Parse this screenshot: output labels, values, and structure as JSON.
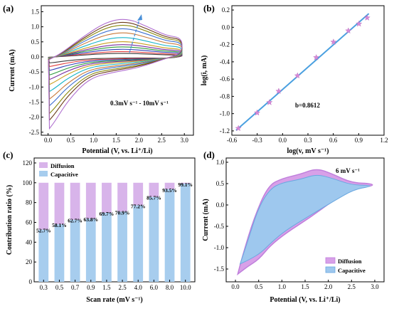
{
  "panels": {
    "a": {
      "label": "(a)",
      "annotation": "0.3mV s⁻¹ - 10mV s⁻¹"
    },
    "b": {
      "label": "(b)",
      "annotation": "b=0.8612"
    },
    "c": {
      "label": "(c)"
    },
    "d": {
      "label": "(d)",
      "annotation": "6 mV s⁻¹"
    }
  },
  "chart_data": [
    {
      "id": "a",
      "type": "line",
      "xlabel": "Potential (V, vs. Li⁺/Li)",
      "ylabel": "Current (mA)",
      "xlim": [
        -0.15,
        3.2
      ],
      "ylim": [
        -2.6,
        1.7
      ],
      "xticks": [
        0.0,
        0.5,
        1.0,
        1.5,
        2.0,
        2.5,
        3.0
      ],
      "yticks": [
        -2.5,
        -2.0,
        -1.5,
        -1.0,
        -0.5,
        0.0,
        0.5,
        1.0,
        1.5
      ],
      "xtick_labels": [
        "0.0",
        "0.5",
        "1.0",
        "1.5",
        "2.0",
        "2.5",
        "3.0"
      ],
      "ytick_labels": [
        "-2.5",
        "-2.0",
        "-1.5",
        "-1.0",
        "-0.5",
        "0.0",
        "0.5",
        "1.0",
        "1.5"
      ],
      "grid": false,
      "series": [
        {
          "color": "#3b3b3b",
          "anodic_peak": 0.12,
          "cathodic_min": -0.2
        },
        {
          "color": "#e03c3c",
          "anodic_peak": 0.18,
          "cathodic_min": -0.32
        },
        {
          "color": "#2f3fb8",
          "anodic_peak": 0.26,
          "cathodic_min": -0.45
        },
        {
          "color": "#2e9a3e",
          "anodic_peak": 0.34,
          "cathodic_min": -0.6
        },
        {
          "color": "#7a2fa0",
          "anodic_peak": 0.42,
          "cathodic_min": -0.75
        },
        {
          "color": "#c9a020",
          "anodic_peak": 0.52,
          "cathodic_min": -0.92
        },
        {
          "color": "#17b4c8",
          "anodic_peak": 0.66,
          "cathodic_min": -1.15
        },
        {
          "color": "#c87a3a",
          "anodic_peak": 0.82,
          "cathodic_min": -1.4
        },
        {
          "color": "#3e6fd0",
          "anodic_peak": 0.96,
          "cathodic_min": -1.62
        },
        {
          "color": "#8a8a10",
          "anodic_peak": 1.08,
          "cathodic_min": -1.88
        },
        {
          "color": "#6a3a18",
          "anodic_peak": 1.18,
          "cathodic_min": -2.1
        },
        {
          "color": "#b070d0",
          "anodic_peak": 1.28,
          "cathodic_min": -2.38
        }
      ]
    },
    {
      "id": "b",
      "type": "scatter",
      "xlabel": "log(v, mV s⁻¹)",
      "ylabel": "log(i, mA)",
      "xlim": [
        -0.6,
        1.2
      ],
      "ylim": [
        -1.25,
        0.25
      ],
      "xticks": [
        -0.6,
        -0.3,
        0.0,
        0.3,
        0.6,
        0.9,
        1.2
      ],
      "yticks": [
        -1.2,
        -1.0,
        -0.8,
        -0.6,
        -0.4,
        -0.2,
        0.0,
        0.2
      ],
      "xtick_labels": [
        "-0.6",
        "-0.3",
        "0.0",
        "0.3",
        "0.6",
        "0.9",
        "1.2"
      ],
      "ytick_labels": [
        "-1.2",
        "-1.0",
        "-0.8",
        "-0.6",
        "-0.4",
        "-0.2",
        "0.0",
        "0.2"
      ],
      "x": [
        -0.523,
        -0.301,
        -0.155,
        -0.046,
        0.176,
        0.398,
        0.602,
        0.778,
        0.903,
        1.0
      ],
      "y": [
        -1.17,
        -0.99,
        -0.87,
        -0.74,
        -0.56,
        -0.35,
        -0.17,
        -0.04,
        0.04,
        0.11
      ],
      "fit_slope": 0.8612,
      "fit_intercept": -0.72,
      "marker_color": "#d88ad8",
      "line_color": "#4aa0e0"
    },
    {
      "id": "c",
      "type": "bar",
      "xlabel": "Scan rate (mV s⁻¹)",
      "ylabel": "Contribution ratio (%)",
      "ylim": [
        0,
        125
      ],
      "yticks": [
        0,
        20,
        40,
        60,
        80,
        100,
        120
      ],
      "ytick_labels": [
        "0",
        "20",
        "40",
        "60",
        "80",
        "100",
        "120"
      ],
      "categories": [
        "0.3",
        "0.5",
        "0.7",
        "0.9",
        "1.5",
        "2.5",
        "4.0",
        "6.0",
        "8.0",
        "10.0"
      ],
      "series": [
        {
          "name": "Capacitive",
          "values": [
            52.7,
            58.1,
            62.7,
            63.8,
            69.7,
            70.9,
            77.2,
            85.7,
            93.5,
            99.1
          ],
          "color": "#a7cdee"
        },
        {
          "name": "Diffusion",
          "values": [
            47.3,
            41.9,
            37.3,
            36.2,
            30.3,
            29.1,
            22.8,
            14.3,
            6.5,
            0.9
          ],
          "color": "#d8b4ea"
        }
      ],
      "data_labels": [
        "52.7%",
        "58.1%",
        "62.7%",
        "63.8%",
        "69.7%",
        "70.9%",
        "77.2%",
        "85.7%",
        "93.5%",
        "99.1%"
      ],
      "legend": "top-left"
    },
    {
      "id": "d",
      "type": "area",
      "xlabel": "Potential (V, vs. Li⁺/Li)",
      "ylabel": "Current (mA)",
      "xlim": [
        -0.2,
        3.2
      ],
      "ylim": [
        -1.8,
        1.1
      ],
      "xticks": [
        0.0,
        0.5,
        1.0,
        1.5,
        2.0,
        2.5,
        3.0
      ],
      "yticks": [
        -1.5,
        -1.0,
        -0.5,
        0.0,
        0.5,
        1.0
      ],
      "xtick_labels": [
        "0.0",
        "0.5",
        "1.0",
        "1.5",
        "2.0",
        "2.5",
        "3.0"
      ],
      "ytick_labels": [
        "-1.5",
        "-1.0",
        "-0.5",
        "0.0",
        "0.5",
        "1.0"
      ],
      "series": [
        {
          "name": "Diffusion",
          "color": "#d8a0e8"
        },
        {
          "name": "Capacitive",
          "color": "#9ec8ee"
        }
      ],
      "legend": "bottom-right"
    }
  ]
}
